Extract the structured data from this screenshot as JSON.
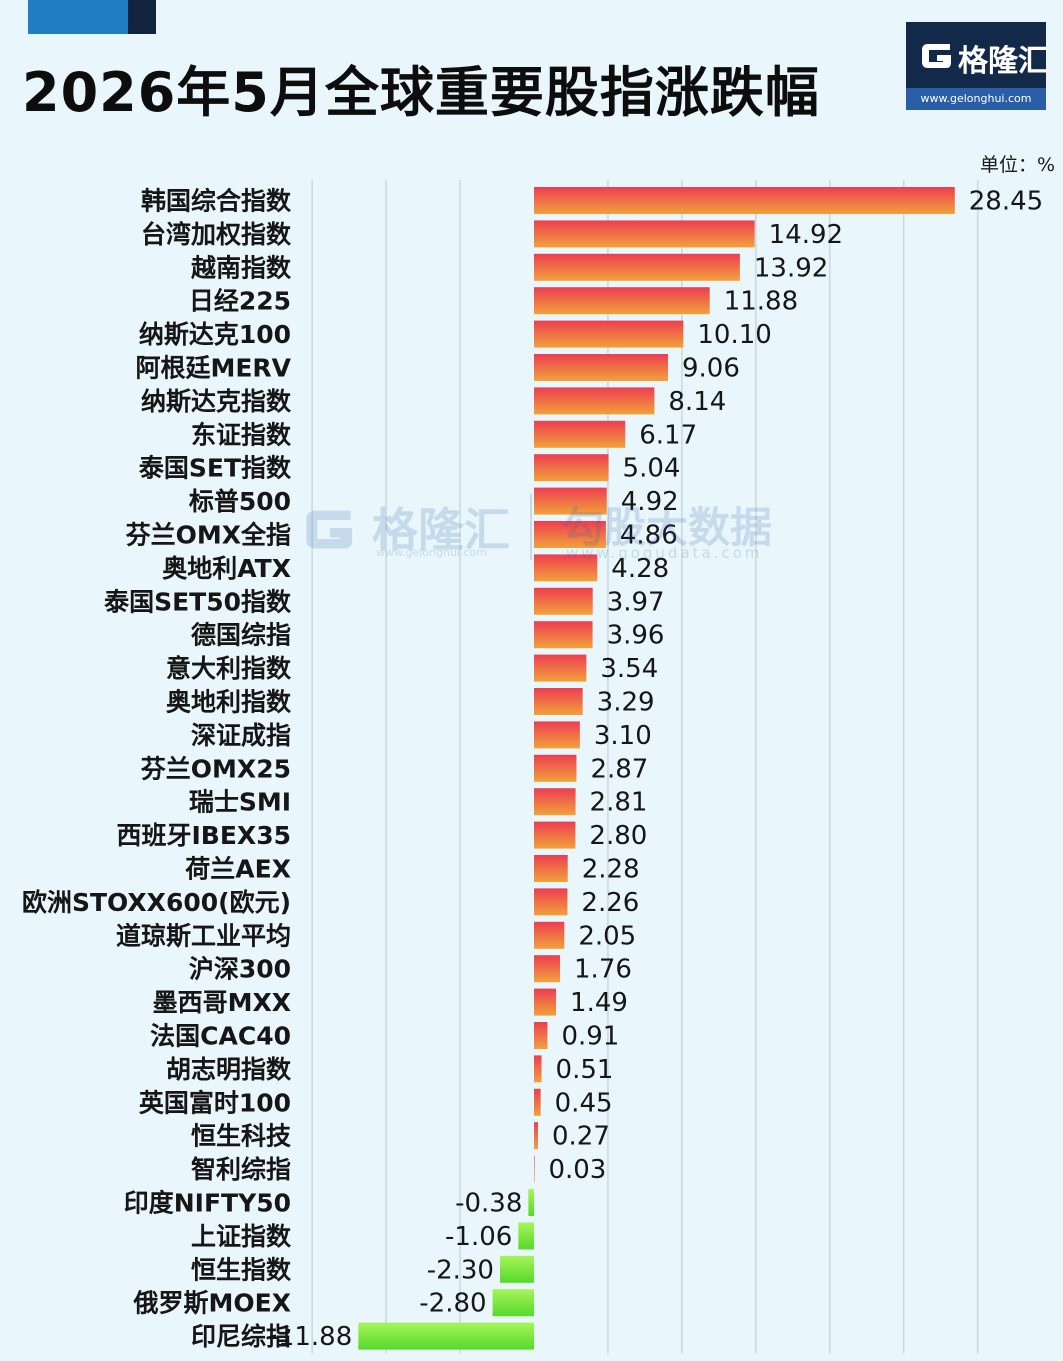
{
  "title": "2026年5月全球重要股指涨跌幅",
  "logo": {
    "name": "格隆汇",
    "url": "www.gelonghui.com"
  },
  "watermark": {
    "name1": "格隆汇",
    "url1": "www.gelonghui.com",
    "name2": "勾股大数据",
    "url2": "www.gogudata.com"
  },
  "colors": {
    "positive_start": "#ee3d52",
    "positive_end": "#f0a23a",
    "negative_start": "#a6f55a",
    "negative_end": "#56d92b",
    "background": "#e9f6fb",
    "gridline": "#c9d8e0"
  },
  "chart_data": {
    "type": "bar",
    "orientation": "horizontal",
    "title": "2026年5月全球重要股指涨跌幅",
    "unit": "单位：%",
    "xlim": [
      -15,
      30
    ],
    "grid": true,
    "categories": [
      "韩国综合指数",
      "台湾加权指数",
      "越南指数",
      "日经225",
      "纳斯达克100",
      "阿根廷MERV",
      "纳斯达克指数",
      "东证指数",
      "泰国SET指数",
      "标普500",
      "芬兰OMX全指",
      "奥地利ATX",
      "泰国SET50指数",
      "德国综指",
      "意大利指数",
      "奥地利指数",
      "深证成指",
      "芬兰OMX25",
      "瑞士SMI",
      "西班牙IBEX35",
      "荷兰AEX",
      "欧洲STOXX600(欧元)",
      "道琼斯工业平均",
      "沪深300",
      "墨西哥MXX",
      "法国CAC40",
      "胡志明指数",
      "英国富时100",
      "恒生科技",
      "智利综指",
      "印度NIFTY50",
      "上证指数",
      "恒生指数",
      "俄罗斯MOEX",
      "印尼综指"
    ],
    "values": [
      28.45,
      14.92,
      13.92,
      11.88,
      10.1,
      9.06,
      8.14,
      6.17,
      5.04,
      4.92,
      4.86,
      4.28,
      3.97,
      3.96,
      3.54,
      3.29,
      3.1,
      2.87,
      2.81,
      2.8,
      2.28,
      2.26,
      2.05,
      1.76,
      1.49,
      0.91,
      0.51,
      0.45,
      0.27,
      0.03,
      -0.38,
      -1.06,
      -2.3,
      -2.8,
      -11.88
    ],
    "labels": [
      "28.45",
      "14.92",
      "13.92",
      "11.88",
      "10.10",
      "9.06",
      "8.14",
      "6.17",
      "5.04",
      "4.92",
      "4.86",
      "4.28",
      "3.97",
      "3.96",
      "3.54",
      "3.29",
      "3.10",
      "2.87",
      "2.81",
      "2.80",
      "2.28",
      "2.26",
      "2.05",
      "1.76",
      "1.49",
      "0.91",
      "0.51",
      "0.45",
      "0.27",
      "0.03",
      "-0.38",
      "-1.06",
      "-2.30",
      "-2.80",
      "-11.88"
    ]
  }
}
